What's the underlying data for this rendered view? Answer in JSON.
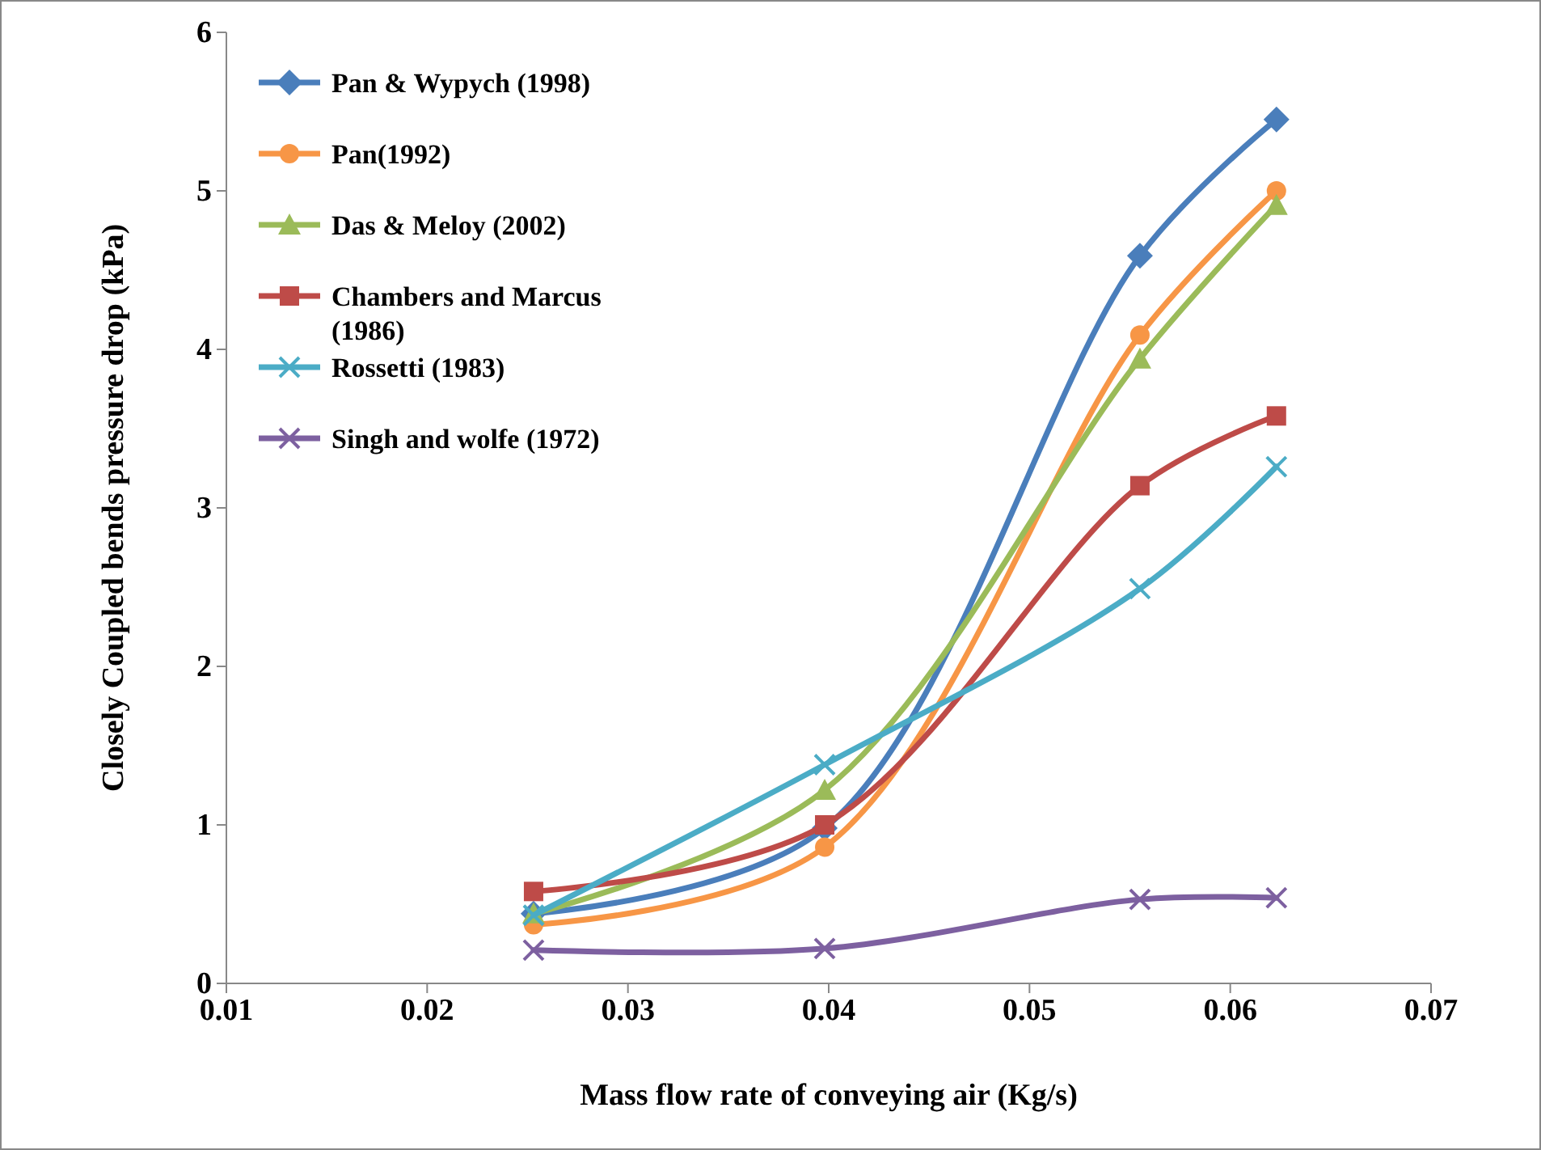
{
  "chart_data": {
    "type": "line",
    "xlabel": "Mass flow rate of conveying air (Kg/s)",
    "ylabel": "Closely Coupled bends pressure drop (kPa)",
    "x": [
      0.0253,
      0.0398,
      0.0555,
      0.0623
    ],
    "xlim": [
      0.01,
      0.07
    ],
    "xticks": [
      0.01,
      0.02,
      0.03,
      0.04,
      0.05,
      0.06,
      0.07
    ],
    "ylim": [
      0,
      6
    ],
    "yticks": [
      0,
      1,
      2,
      3,
      4,
      5,
      6
    ],
    "legend": "top left",
    "series": [
      {
        "name": "Pan & Wypych (1998)",
        "color": "#4a7ebb",
        "marker": "diamond",
        "values": [
          0.44,
          0.98,
          4.59,
          5.45
        ]
      },
      {
        "name": "Pan(1992)",
        "color": "#f79646",
        "marker": "circle",
        "values": [
          0.37,
          0.86,
          4.09,
          5.0
        ]
      },
      {
        "name": "Das & Meloy (2002)",
        "color": "#9bbb59",
        "marker": "triangle",
        "values": [
          0.44,
          1.22,
          3.94,
          4.91
        ]
      },
      {
        "name": "Chambers and Marcus (1986)",
        "color": "#be4b48",
        "marker": "square",
        "values": [
          0.58,
          1.0,
          3.14,
          3.58
        ]
      },
      {
        "name": "Rossetti (1983)",
        "color": "#4bacc6",
        "marker": "cross",
        "values": [
          0.43,
          1.38,
          2.49,
          3.26
        ]
      },
      {
        "name": "Singh and wolfe (1972)",
        "color": "#7d60a0",
        "marker": "cross",
        "values": [
          0.21,
          0.22,
          0.53,
          0.54
        ]
      }
    ]
  }
}
